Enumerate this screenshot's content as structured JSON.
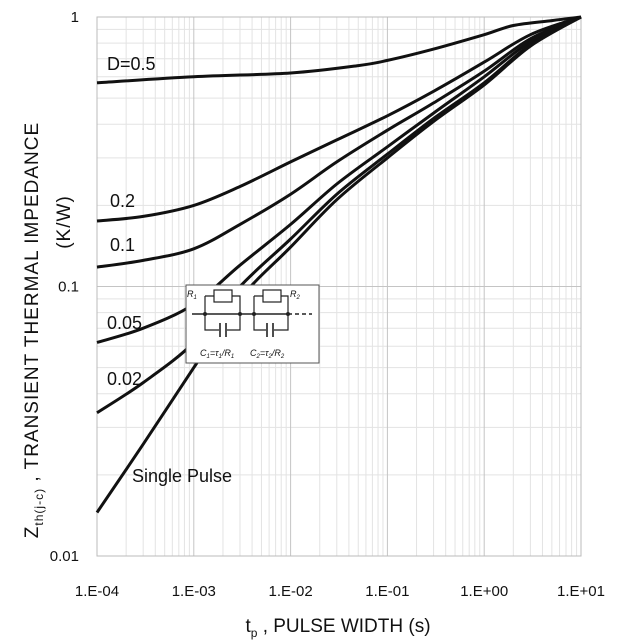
{
  "chart_data": {
    "type": "line",
    "x_scale": "log",
    "y_scale": "log",
    "xlim": [
      0.0001,
      10
    ],
    "ylim": [
      0.01,
      1
    ],
    "grid": true,
    "x_ticks": [
      "1.E-04",
      "1.E-03",
      "1.E-02",
      "1.E-01",
      "1.E+00",
      "1.E+01"
    ],
    "y_ticks": [
      "1",
      "0.1",
      "0.01"
    ],
    "xlabel_main": "t",
    "xlabel_sub": "p",
    "xlabel_rest": " , PULSE WIDTH (s)",
    "ylabel_main": "Z",
    "ylabel_sub": "th(j-c)",
    "ylabel_rest": " , TRANSIENT THERMAL IMPEDANCE",
    "ylabel_unit": "(K/W)",
    "series": [
      {
        "name": "D=0.5",
        "x": [
          0.0001,
          0.001,
          0.01,
          0.05,
          0.1,
          0.3,
          1,
          2,
          5,
          10
        ],
        "y": [
          0.57,
          0.6,
          0.62,
          0.66,
          0.69,
          0.76,
          0.86,
          0.93,
          0.97,
          1.0
        ]
      },
      {
        "name": "0.2",
        "x": [
          0.0001,
          0.0003,
          0.001,
          0.003,
          0.01,
          0.03,
          0.1,
          0.3,
          1,
          3,
          10
        ],
        "y": [
          0.175,
          0.182,
          0.2,
          0.235,
          0.29,
          0.35,
          0.43,
          0.53,
          0.68,
          0.86,
          1.0
        ]
      },
      {
        "name": "0.1",
        "x": [
          0.0001,
          0.0003,
          0.001,
          0.003,
          0.01,
          0.03,
          0.1,
          0.3,
          1,
          3,
          10
        ],
        "y": [
          0.118,
          0.125,
          0.138,
          0.17,
          0.22,
          0.29,
          0.38,
          0.48,
          0.63,
          0.83,
          1.0
        ]
      },
      {
        "name": "0.05",
        "x": [
          0.0001,
          0.0003,
          0.001,
          0.003,
          0.01,
          0.03,
          0.1,
          0.3,
          1,
          3,
          10
        ],
        "y": [
          0.062,
          0.07,
          0.086,
          0.12,
          0.17,
          0.24,
          0.33,
          0.44,
          0.6,
          0.81,
          1.0
        ]
      },
      {
        "name": "0.02",
        "x": [
          0.0001,
          0.0003,
          0.001,
          0.003,
          0.01,
          0.03,
          0.1,
          0.3,
          1,
          3,
          10
        ],
        "y": [
          0.034,
          0.044,
          0.062,
          0.1,
          0.15,
          0.22,
          0.31,
          0.42,
          0.57,
          0.79,
          1.0
        ]
      },
      {
        "name": "Single Pulse",
        "x": [
          0.0001,
          0.0003,
          0.001,
          0.003,
          0.01,
          0.03,
          0.1,
          0.3,
          1,
          3,
          10
        ],
        "y": [
          0.0145,
          0.026,
          0.05,
          0.09,
          0.14,
          0.21,
          0.3,
          0.41,
          0.56,
          0.78,
          1.0
        ]
      }
    ],
    "series_labels": [
      "D=0.5",
      "0.2",
      "0.1",
      "0.05",
      "0.02",
      "Single Pulse"
    ],
    "inset": {
      "r1": "R",
      "r1_sub": "1",
      "r2": "R",
      "r2_sub": "2",
      "c1": "C",
      "c1_sub": "1",
      "c1_eq": "=τ",
      "c1_eq_sub": "1",
      "c1_div": "/R",
      "c1_div_sub": "1",
      "c2": "C",
      "c2_sub": "2",
      "c2_eq": "=τ",
      "c2_eq_sub": "2",
      "c2_div": "/R",
      "c2_div_sub": "2"
    }
  }
}
